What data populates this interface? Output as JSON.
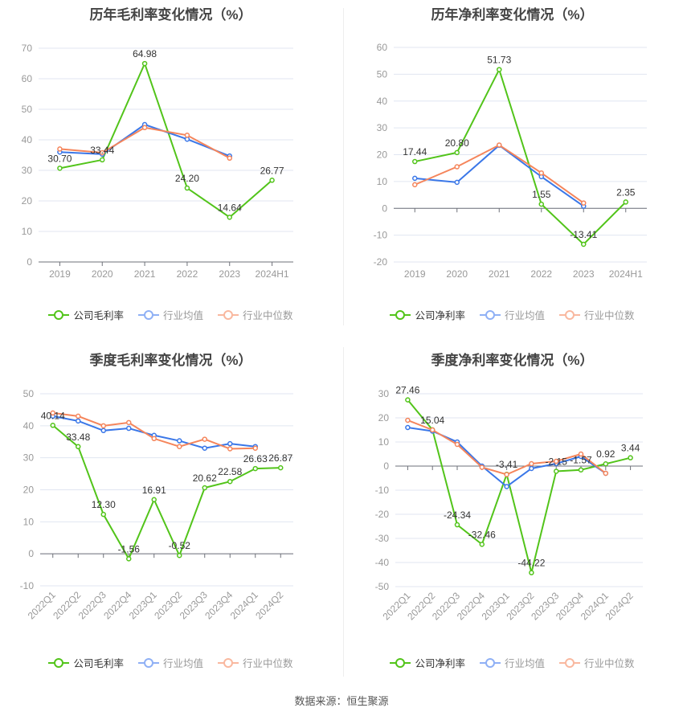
{
  "colors": {
    "company": "#52c41a",
    "avg": "#3a77e8",
    "median": "#f5855b",
    "avg_legend": "#8fb0f5",
    "median_legend": "#f9b89f"
  },
  "source": "数据来源：恒生聚源",
  "chart_data": [
    {
      "type": "line",
      "title": "历年毛利率变化情况（%）",
      "categories": [
        "2019",
        "2020",
        "2021",
        "2022",
        "2023",
        "2024H1"
      ],
      "ylim": [
        0,
        70
      ],
      "yticks": [
        0,
        10,
        20,
        30,
        40,
        50,
        60,
        70
      ],
      "grid": true,
      "legend": "bottom",
      "series": [
        {
          "name": "公司毛利率",
          "values": [
            30.7,
            33.44,
            64.98,
            24.2,
            14.64,
            26.77
          ],
          "labels": [
            "30.70",
            "33.44",
            "64.98",
            "24.20",
            "14.64",
            "26.77"
          ]
        },
        {
          "name": "行业均值",
          "values": [
            36.0,
            35.3,
            45.0,
            40.2,
            34.7,
            null
          ]
        },
        {
          "name": "行业中位数",
          "values": [
            37.0,
            35.8,
            44.0,
            41.5,
            34.0,
            null
          ]
        }
      ]
    },
    {
      "type": "line",
      "title": "历年净利率变化情况（%）",
      "categories": [
        "2019",
        "2020",
        "2021",
        "2022",
        "2023",
        "2024H1"
      ],
      "ylim": [
        -20,
        60
      ],
      "yticks": [
        -20,
        -10,
        0,
        10,
        20,
        30,
        40,
        50,
        60
      ],
      "grid": true,
      "legend": "bottom",
      "series": [
        {
          "name": "公司净利率",
          "values": [
            17.44,
            20.8,
            51.73,
            1.55,
            -13.41,
            2.35
          ],
          "labels": [
            "17.44",
            "20.80",
            "51.73",
            "1.55",
            "-13.41",
            "2.35"
          ]
        },
        {
          "name": "行业均值",
          "values": [
            11.2,
            9.7,
            23.5,
            11.8,
            0.8,
            null
          ]
        },
        {
          "name": "行业中位数",
          "values": [
            8.8,
            15.5,
            23.6,
            13.2,
            2.0,
            null
          ]
        }
      ]
    },
    {
      "type": "line",
      "title": "季度毛利率变化情况（%）",
      "categories": [
        "2022Q1",
        "2022Q2",
        "2022Q3",
        "2022Q4",
        "2023Q1",
        "2023Q2",
        "2023Q3",
        "2023Q4",
        "2024Q1",
        "2024Q2"
      ],
      "ylim": [
        -10,
        50
      ],
      "yticks": [
        -10,
        0,
        10,
        20,
        30,
        40,
        50
      ],
      "grid": true,
      "legend": "bottom",
      "series": [
        {
          "name": "公司毛利率",
          "values": [
            40.14,
            33.48,
            12.3,
            -1.56,
            16.91,
            -0.52,
            20.62,
            22.58,
            26.63,
            26.87
          ],
          "labels": [
            "40.14",
            "33.48",
            "12.30",
            "-1.56",
            "16.91",
            "-0.52",
            "20.62",
            "22.58",
            "26.63",
            "26.87"
          ]
        },
        {
          "name": "行业均值",
          "values": [
            43.0,
            41.5,
            38.5,
            39.2,
            37.0,
            35.3,
            33.0,
            34.4,
            33.5,
            null
          ]
        },
        {
          "name": "行业中位数",
          "values": [
            44.0,
            43.0,
            40.0,
            41.0,
            36.0,
            33.5,
            35.8,
            32.8,
            33.0,
            null
          ]
        }
      ]
    },
    {
      "type": "line",
      "title": "季度净利率变化情况（%）",
      "categories": [
        "2022Q1",
        "2022Q2",
        "2022Q3",
        "2022Q4",
        "2023Q1",
        "2023Q2",
        "2023Q3",
        "2023Q4",
        "2024Q1",
        "2024Q2"
      ],
      "ylim": [
        -50,
        30
      ],
      "yticks": [
        -50,
        -40,
        -30,
        -20,
        -10,
        0,
        10,
        20,
        30
      ],
      "grid": true,
      "legend": "bottom",
      "series": [
        {
          "name": "公司净利率",
          "values": [
            27.46,
            15.04,
            -24.34,
            -32.46,
            -3.41,
            -44.22,
            -2.15,
            -1.57,
            0.92,
            3.44
          ],
          "labels": [
            "27.46",
            "15.04",
            "-24.34",
            "-32.46",
            "-3.41",
            "-44.22",
            "-2.15",
            "-1.57",
            "0.92",
            "3.44"
          ]
        },
        {
          "name": "行业均值",
          "values": [
            16.0,
            14.5,
            10.0,
            0.0,
            -8.5,
            -1.0,
            1.0,
            4.0,
            -3.0,
            null
          ]
        },
        {
          "name": "行业中位数",
          "values": [
            19.0,
            15.0,
            9.0,
            -0.5,
            -3.5,
            1.0,
            2.0,
            5.0,
            -3.0,
            null
          ]
        }
      ]
    }
  ]
}
